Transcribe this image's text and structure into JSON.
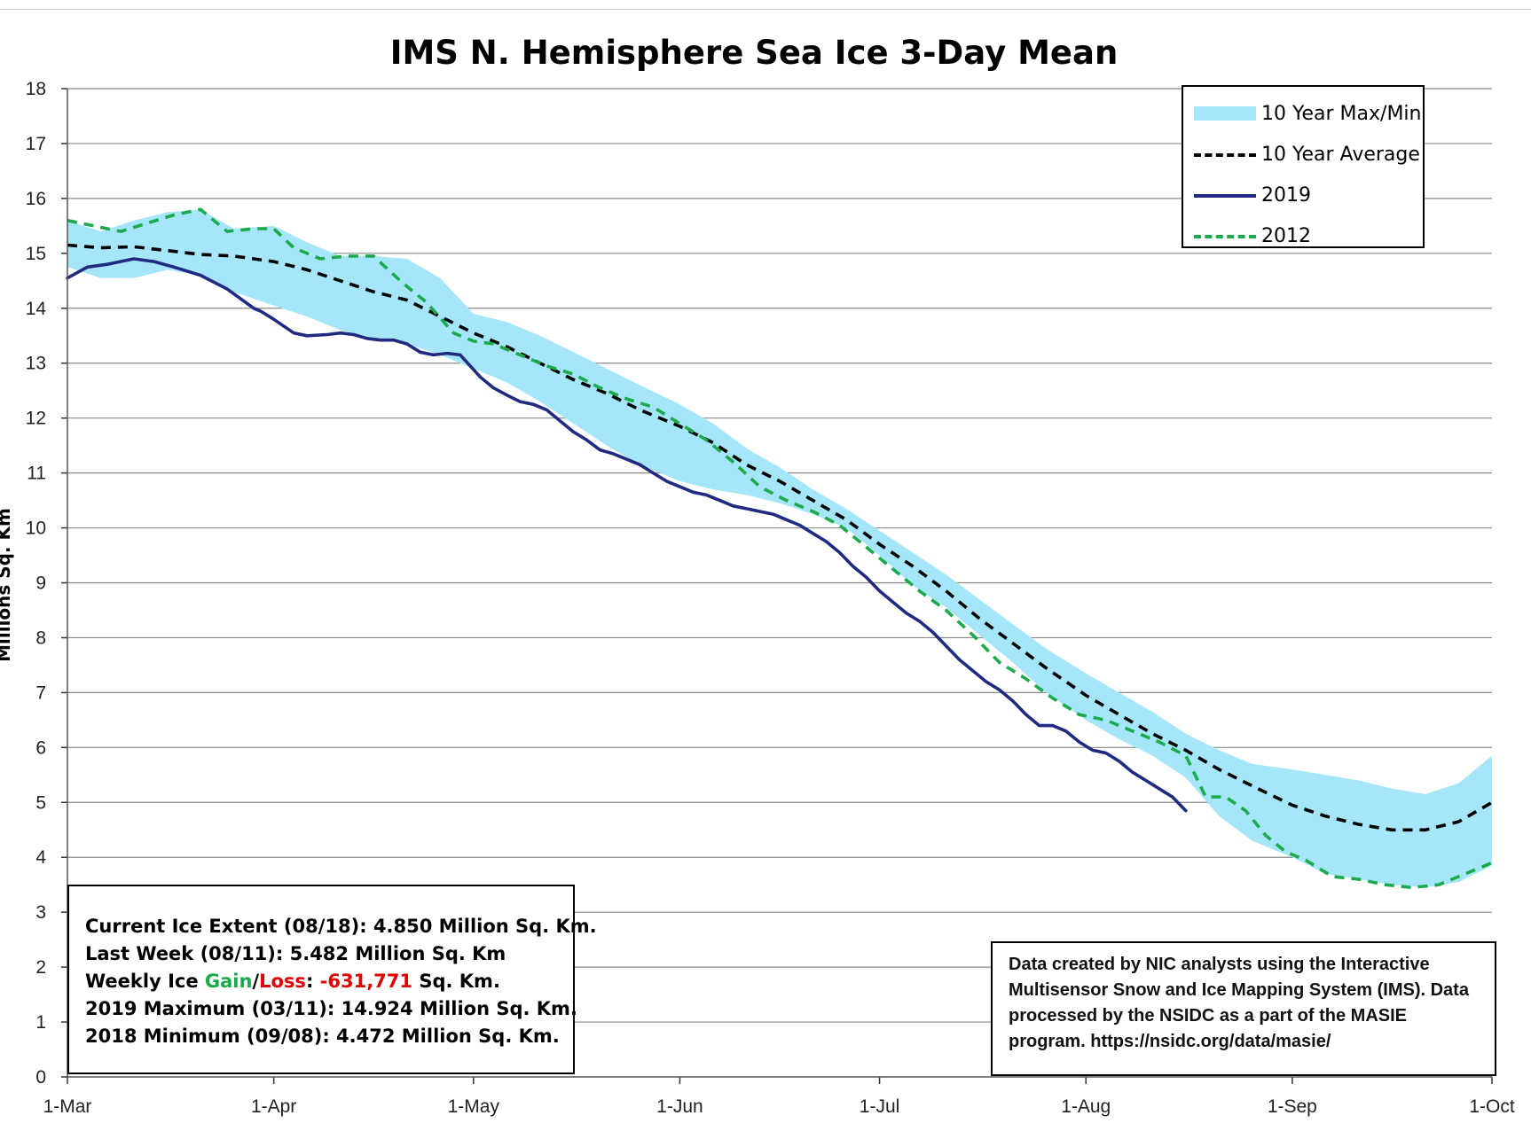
{
  "chart_data": {
    "type": "line",
    "title": "IMS N. Hemisphere Sea Ice 3-Day Mean",
    "ylabel": "Millions Sq. Km",
    "xlabel": "",
    "ylim": [
      0,
      18
    ],
    "yticks": [
      0,
      1,
      2,
      3,
      4,
      5,
      6,
      7,
      8,
      9,
      10,
      11,
      12,
      13,
      14,
      15,
      16,
      17,
      18
    ],
    "xlim_day": [
      0,
      214
    ],
    "xticks": [
      {
        "day": 0,
        "label": "1-Mar"
      },
      {
        "day": 31,
        "label": "1-Apr"
      },
      {
        "day": 61,
        "label": "1-May"
      },
      {
        "day": 92,
        "label": "1-Jun"
      },
      {
        "day": 122,
        "label": "1-Jul"
      },
      {
        "day": 153,
        "label": "1-Aug"
      },
      {
        "day": 184,
        "label": "1-Sep"
      },
      {
        "day": 214,
        "label": "1-Oct"
      }
    ],
    "grid": true,
    "legend_position": "top-right",
    "series": [
      {
        "name": "10 Year Max/Min",
        "kind": "band",
        "color": "#a6e6fa",
        "x": [
          0,
          5,
          10,
          15,
          20,
          25,
          31,
          36,
          41,
          46,
          51,
          56,
          61,
          66,
          71,
          76,
          81,
          86,
          92,
          97,
          102,
          107,
          112,
          117,
          122,
          127,
          132,
          137,
          142,
          147,
          153,
          158,
          163,
          168,
          173,
          178,
          184,
          189,
          194,
          199,
          204,
          209,
          214
        ],
        "upper": [
          15.6,
          15.4,
          15.6,
          15.75,
          15.8,
          15.45,
          15.5,
          15.2,
          14.95,
          14.95,
          14.9,
          14.55,
          13.9,
          13.75,
          13.5,
          13.2,
          12.9,
          12.6,
          12.25,
          11.9,
          11.45,
          11.1,
          10.7,
          10.35,
          9.95,
          9.55,
          9.15,
          8.7,
          8.25,
          7.8,
          7.35,
          7.0,
          6.65,
          6.25,
          5.95,
          5.7,
          5.6,
          5.5,
          5.4,
          5.25,
          5.15,
          5.35,
          5.85
        ],
        "lower": [
          14.75,
          14.55,
          14.55,
          14.7,
          14.6,
          14.3,
          14.05,
          13.85,
          13.6,
          13.45,
          13.35,
          13.15,
          12.9,
          12.65,
          12.3,
          11.9,
          11.5,
          11.15,
          10.85,
          10.7,
          10.6,
          10.45,
          10.25,
          10.0,
          9.5,
          8.95,
          8.55,
          8.05,
          7.55,
          7.0,
          6.5,
          6.15,
          5.85,
          5.45,
          4.75,
          4.3,
          4.0,
          3.7,
          3.6,
          3.5,
          3.45,
          3.55,
          3.85
        ]
      },
      {
        "name": "10 Year Average",
        "kind": "line",
        "color": "#000000",
        "dash": "dashed",
        "x": [
          0,
          5,
          10,
          15,
          20,
          25,
          31,
          36,
          41,
          46,
          51,
          56,
          61,
          66,
          71,
          76,
          81,
          86,
          92,
          97,
          102,
          107,
          112,
          117,
          122,
          127,
          132,
          137,
          142,
          147,
          153,
          158,
          163,
          168,
          173,
          178,
          184,
          189,
          194,
          199,
          204,
          209,
          214
        ],
        "values": [
          15.15,
          15.1,
          15.12,
          15.05,
          14.98,
          14.95,
          14.85,
          14.7,
          14.5,
          14.3,
          14.15,
          13.85,
          13.55,
          13.3,
          13.0,
          12.7,
          12.45,
          12.15,
          11.85,
          11.55,
          11.15,
          10.85,
          10.5,
          10.15,
          9.7,
          9.3,
          8.85,
          8.35,
          7.9,
          7.45,
          6.95,
          6.6,
          6.25,
          5.95,
          5.6,
          5.3,
          4.95,
          4.75,
          4.6,
          4.5,
          4.5,
          4.65,
          5.0
        ]
      },
      {
        "name": "2019",
        "kind": "line",
        "color": "#1f2a80",
        "dash": "solid",
        "x": [
          0,
          3,
          6,
          10,
          13,
          16,
          20,
          24,
          28,
          29,
          31,
          34,
          36,
          39,
          41,
          43,
          45,
          47,
          49,
          51,
          53,
          55,
          57,
          59,
          62,
          64,
          66,
          68,
          70,
          72,
          74,
          76,
          78,
          80,
          82,
          84,
          86,
          88,
          90,
          92,
          94,
          96,
          98,
          100,
          102,
          104,
          106,
          108,
          110,
          112,
          114,
          116,
          118,
          120,
          122,
          124,
          126,
          128,
          130,
          132,
          134,
          136,
          138,
          140,
          142,
          144,
          146,
          148,
          150,
          152,
          154,
          156,
          158,
          160,
          162,
          164,
          166,
          168
        ],
        "values": [
          14.55,
          14.75,
          14.8,
          14.9,
          14.85,
          14.75,
          14.6,
          14.35,
          14.0,
          13.95,
          13.8,
          13.55,
          13.5,
          13.52,
          13.55,
          13.52,
          13.45,
          13.42,
          13.42,
          13.35,
          13.2,
          13.15,
          13.18,
          13.15,
          12.75,
          12.55,
          12.42,
          12.3,
          12.25,
          12.15,
          11.95,
          11.75,
          11.6,
          11.42,
          11.35,
          11.25,
          11.15,
          11.0,
          10.85,
          10.75,
          10.65,
          10.6,
          10.5,
          10.4,
          10.35,
          10.3,
          10.25,
          10.15,
          10.05,
          9.9,
          9.75,
          9.55,
          9.3,
          9.1,
          8.85,
          8.65,
          8.45,
          8.3,
          8.1,
          7.85,
          7.6,
          7.4,
          7.2,
          7.05,
          6.85,
          6.6,
          6.4,
          6.4,
          6.3,
          6.1,
          5.95,
          5.9,
          5.75,
          5.55,
          5.4,
          5.25,
          5.1,
          4.85
        ]
      },
      {
        "name": "2012",
        "kind": "line",
        "color": "#1caa4c",
        "dash": "dashed",
        "x": [
          0,
          4,
          8,
          12,
          16,
          20,
          24,
          28,
          31,
          34,
          38,
          42,
          46,
          50,
          54,
          58,
          61,
          64,
          68,
          72,
          76,
          80,
          84,
          88,
          92,
          96,
          100,
          104,
          108,
          112,
          116,
          120,
          124,
          128,
          132,
          136,
          140,
          144,
          148,
          152,
          156,
          160,
          164,
          168,
          171,
          174,
          177,
          180,
          183,
          186,
          190,
          194,
          198,
          202,
          206,
          210,
          214
        ],
        "values": [
          15.6,
          15.5,
          15.4,
          15.55,
          15.7,
          15.8,
          15.4,
          15.45,
          15.45,
          15.1,
          14.9,
          14.95,
          14.95,
          14.5,
          14.1,
          13.55,
          13.4,
          13.35,
          13.15,
          12.95,
          12.8,
          12.55,
          12.35,
          12.2,
          11.9,
          11.6,
          11.2,
          10.75,
          10.5,
          10.3,
          10.05,
          9.65,
          9.25,
          8.85,
          8.5,
          8.05,
          7.55,
          7.25,
          6.9,
          6.6,
          6.5,
          6.3,
          6.1,
          5.85,
          5.1,
          5.1,
          4.85,
          4.4,
          4.1,
          3.95,
          3.65,
          3.6,
          3.5,
          3.45,
          3.5,
          3.7,
          3.9
        ]
      }
    ]
  },
  "legend": {
    "items": [
      "10 Year Max/Min",
      "10 Year Average",
      "2019",
      "2012"
    ]
  },
  "info_box": {
    "line1": "Current Ice Extent (08/18): 4.850 Million Sq. Km.",
    "line2": "Last Week (08/11): 5.482 Million Sq. Km",
    "line3_prefix": "Weekly Ice ",
    "line3_gain": "Gain",
    "line3_slash": "/",
    "line3_loss": "Loss",
    "line3_colon": ": ",
    "line3_value": "-631,771",
    "line3_suffix": " Sq. Km.",
    "line4": "2019 Maximum (03/11): 14.924 Million Sq. Km.",
    "line5": "2018 Minimum (09/08): 4.472 Million Sq. Km."
  },
  "credit_box": {
    "text": "Data created by NIC analysts using the Interactive Multisensor Snow and Ice Mapping System (IMS). Data processed by the NSIDC as a part of the MASIE program. https://nsidc.org/data/masie/"
  }
}
